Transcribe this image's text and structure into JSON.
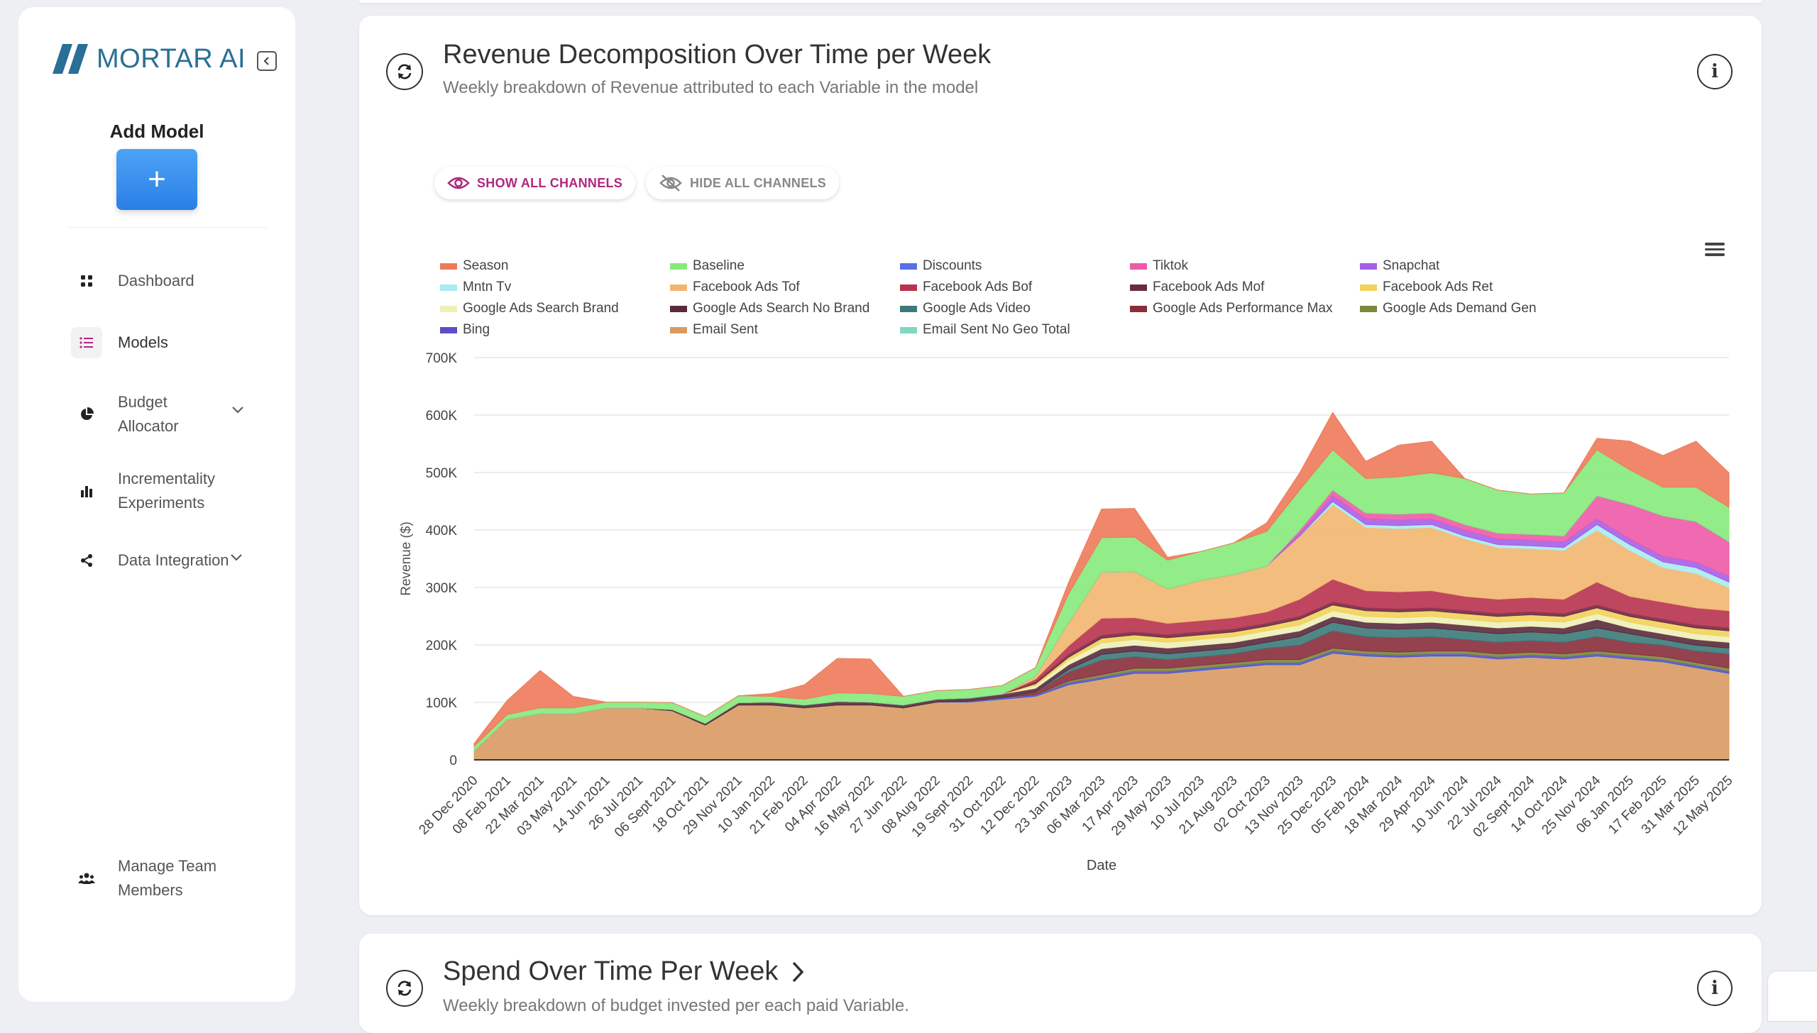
{
  "sidebar": {
    "brand": "MORTAR AI",
    "add_model_title": "Add Model",
    "add_model_symbol": "+",
    "items": [
      {
        "label": "Dashboard",
        "icon": "grid-icon"
      },
      {
        "label": "Models",
        "icon": "list-icon",
        "active": true
      },
      {
        "label": "Budget Allocator",
        "icon": "pie-chart-icon",
        "expandable": true
      },
      {
        "label": "Incrementality Experiments",
        "icon": "bar-chart-icon"
      },
      {
        "label": "Data Integration",
        "icon": "share-icon",
        "expandable": true
      },
      {
        "label": "Manage Team Members",
        "icon": "team-icon"
      }
    ]
  },
  "revenue_card": {
    "title": "Revenue Decomposition Over Time per Week",
    "subtitle": "Weekly breakdown of Revenue attributed to each Variable in the model",
    "show_all_label": "SHOW ALL CHANNELS",
    "hide_all_label": "HIDE ALL CHANNELS"
  },
  "spend_card": {
    "title": "Spend Over Time Per Week",
    "subtitle": "Weekly breakdown of budget invested per each paid Variable."
  },
  "chart_data": {
    "type": "area",
    "stacked": true,
    "xlabel": "Date",
    "ylabel": "Revenue ($)",
    "ylim": [
      0,
      700000
    ],
    "y_ticks": [
      "0",
      "100K",
      "200K",
      "300K",
      "400K",
      "500K",
      "600K",
      "700K"
    ],
    "x_tick_labels": [
      "28 Dec 2020",
      "08 Feb 2021",
      "22 Mar 2021",
      "03 May 2021",
      "14 Jun 2021",
      "26 Jul 2021",
      "06 Sept 2021",
      "18 Oct 2021",
      "29 Nov 2021",
      "10 Jan 2022",
      "21 Feb 2022",
      "04 Apr 2022",
      "16 May 2022",
      "27 Jun 2022",
      "08 Aug 2022",
      "19 Sept 2022",
      "31 Oct 2022",
      "12 Dec 2022",
      "23 Jan 2023",
      "06 Mar 2023",
      "17 Apr 2023",
      "29 May 2023",
      "10 Jul 2023",
      "21 Aug 2023",
      "02 Oct 2023",
      "13 Nov 2023",
      "25 Dec 2023",
      "05 Feb 2024",
      "18 Mar 2024",
      "29 Apr 2024",
      "10 Jun 2024",
      "22 Jul 2024",
      "02 Sept 2024",
      "14 Oct 2024",
      "25 Nov 2024",
      "06 Jan 2025",
      "17 Feb 2025",
      "31 Mar 2025",
      "12 May 2025"
    ],
    "grid": true,
    "legend_position": "top",
    "series_values_note_x": "values given per x tick label (approx. weekly samples at tick dates)",
    "series": [
      {
        "name": "Email Sent",
        "color": "#d99a62",
        "values": [
          15000,
          70000,
          80000,
          80000,
          90000,
          90000,
          85000,
          60000,
          95000,
          95000,
          90000,
          95000,
          95000,
          90000,
          100000,
          100000,
          105000,
          110000,
          130000,
          140000,
          150000,
          150000,
          155000,
          160000,
          165000,
          165000,
          185000,
          180000,
          178000,
          180000,
          180000,
          175000,
          178000,
          175000,
          180000,
          175000,
          170000,
          160000,
          150000
        ]
      },
      {
        "name": "Email Sent No Geo Total",
        "color": "#7fd8c0",
        "values": [
          500,
          500,
          500,
          500,
          500,
          500,
          500,
          500,
          500,
          500,
          500,
          500,
          500,
          500,
          500,
          500,
          500,
          500,
          500,
          500,
          500,
          500,
          500,
          500,
          500,
          500,
          500,
          500,
          500,
          500,
          500,
          500,
          500,
          500,
          500,
          500,
          500,
          500,
          500
        ]
      },
      {
        "name": "Bing",
        "color": "#5a4fc8",
        "values": [
          0,
          0,
          0,
          0,
          0,
          0,
          0,
          0,
          0,
          0,
          0,
          0,
          0,
          0,
          0,
          2000,
          3000,
          3000,
          4000,
          4000,
          4000,
          4000,
          4000,
          4000,
          4000,
          4000,
          4000,
          4000,
          4000,
          4000,
          4000,
          4000,
          4000,
          4000,
          4000,
          4000,
          4000,
          4000,
          4000
        ]
      },
      {
        "name": "Google Ads Demand Gen",
        "color": "#7a8a3a",
        "values": [
          0,
          0,
          0,
          0,
          0,
          0,
          0,
          0,
          0,
          0,
          0,
          0,
          0,
          0,
          0,
          0,
          0,
          0,
          3000,
          4000,
          5000,
          5000,
          5000,
          5000,
          5000,
          5000,
          5000,
          5000,
          5000,
          5000,
          5000,
          5000,
          5000,
          5000,
          5000,
          5000,
          5000,
          5000,
          5000
        ]
      },
      {
        "name": "Google Ads Performance Max",
        "color": "#8a2d3c",
        "values": [
          0,
          0,
          0,
          0,
          0,
          0,
          0,
          0,
          0,
          0,
          0,
          0,
          0,
          0,
          0,
          0,
          0,
          5000,
          15000,
          25000,
          20000,
          15000,
          15000,
          15000,
          20000,
          25000,
          30000,
          25000,
          25000,
          25000,
          20000,
          20000,
          20000,
          20000,
          25000,
          20000,
          20000,
          20000,
          25000
        ]
      },
      {
        "name": "Google Ads Video",
        "color": "#3c7a7a",
        "values": [
          0,
          0,
          0,
          0,
          0,
          0,
          0,
          0,
          0,
          0,
          0,
          0,
          0,
          0,
          0,
          0,
          0,
          0,
          5000,
          10000,
          10000,
          10000,
          10000,
          10000,
          10000,
          15000,
          15000,
          15000,
          15000,
          15000,
          15000,
          15000,
          15000,
          15000,
          15000,
          15000,
          10000,
          10000,
          10000
        ]
      },
      {
        "name": "Google Ads Search No Brand",
        "color": "#5a2a3c",
        "values": [
          0,
          0,
          0,
          0,
          0,
          0,
          2000,
          3000,
          4000,
          5000,
          5000,
          6000,
          5000,
          5000,
          5000,
          5000,
          6000,
          6000,
          8000,
          10000,
          10000,
          10000,
          10000,
          10000,
          10000,
          10000,
          10000,
          10000,
          10000,
          10000,
          10000,
          10000,
          10000,
          10000,
          15000,
          10000,
          10000,
          10000,
          10000
        ]
      },
      {
        "name": "Google Ads Search Brand",
        "color": "#eef0b8",
        "values": [
          0,
          0,
          0,
          0,
          0,
          0,
          0,
          0,
          0,
          0,
          0,
          0,
          0,
          0,
          0,
          0,
          0,
          5000,
          8000,
          10000,
          10000,
          10000,
          10000,
          10000,
          10000,
          10000,
          10000,
          10000,
          10000,
          10000,
          10000,
          10000,
          10000,
          10000,
          10000,
          10000,
          10000,
          10000,
          10000
        ]
      },
      {
        "name": "Facebook Ads Ret",
        "color": "#f2d25a",
        "values": [
          0,
          0,
          0,
          0,
          0,
          0,
          0,
          0,
          0,
          0,
          0,
          0,
          0,
          0,
          0,
          0,
          0,
          3000,
          5000,
          8000,
          8000,
          8000,
          8000,
          8000,
          8000,
          10000,
          10000,
          10000,
          10000,
          10000,
          10000,
          10000,
          10000,
          10000,
          10000,
          10000,
          10000,
          10000,
          10000
        ]
      },
      {
        "name": "Facebook Ads Mof",
        "color": "#6a2a44",
        "values": [
          0,
          0,
          0,
          0,
          0,
          0,
          0,
          0,
          0,
          0,
          0,
          0,
          0,
          0,
          0,
          0,
          0,
          3000,
          5000,
          5000,
          5000,
          5000,
          5000,
          5000,
          5000,
          5000,
          5000,
          5000,
          5000,
          5000,
          5000,
          5000,
          5000,
          5000,
          5000,
          5000,
          5000,
          5000,
          5000
        ]
      },
      {
        "name": "Facebook Ads Bof",
        "color": "#b8324e",
        "values": [
          0,
          0,
          0,
          0,
          0,
          0,
          0,
          0,
          0,
          0,
          0,
          0,
          0,
          0,
          0,
          0,
          0,
          5000,
          15000,
          30000,
          25000,
          20000,
          20000,
          20000,
          20000,
          30000,
          40000,
          30000,
          30000,
          30000,
          25000,
          25000,
          25000,
          25000,
          40000,
          30000,
          30000,
          30000,
          30000
        ]
      },
      {
        "name": "Facebook Ads Tof",
        "color": "#f2b670",
        "values": [
          0,
          0,
          0,
          0,
          0,
          0,
          0,
          0,
          0,
          0,
          0,
          0,
          0,
          0,
          0,
          0,
          0,
          5000,
          40000,
          80000,
          80000,
          60000,
          70000,
          75000,
          80000,
          110000,
          130000,
          110000,
          110000,
          110000,
          100000,
          90000,
          85000,
          85000,
          90000,
          80000,
          60000,
          60000,
          40000
        ]
      },
      {
        "name": "Mntn Tv",
        "color": "#a8ecf0",
        "values": [
          0,
          0,
          0,
          0,
          0,
          0,
          0,
          0,
          0,
          0,
          0,
          0,
          0,
          0,
          0,
          0,
          0,
          0,
          0,
          0,
          0,
          0,
          0,
          0,
          0,
          0,
          5000,
          5000,
          5000,
          5000,
          5000,
          5000,
          5000,
          5000,
          10000,
          10000,
          10000,
          10000,
          10000
        ]
      },
      {
        "name": "Snapchat",
        "color": "#a65ee8",
        "values": [
          0,
          0,
          0,
          0,
          0,
          0,
          0,
          0,
          0,
          0,
          0,
          0,
          0,
          0,
          0,
          0,
          0,
          0,
          0,
          0,
          0,
          0,
          0,
          0,
          0,
          5000,
          10000,
          10000,
          10000,
          10000,
          10000,
          10000,
          10000,
          10000,
          10000,
          10000,
          10000,
          10000,
          10000
        ]
      },
      {
        "name": "Tiktok",
        "color": "#ee5aa8",
        "values": [
          0,
          0,
          0,
          0,
          0,
          0,
          0,
          0,
          0,
          0,
          0,
          0,
          0,
          0,
          0,
          0,
          0,
          0,
          0,
          0,
          0,
          0,
          0,
          0,
          0,
          5000,
          10000,
          10000,
          10000,
          10000,
          10000,
          10000,
          10000,
          10000,
          40000,
          60000,
          70000,
          70000,
          60000
        ]
      },
      {
        "name": "Discounts",
        "color": "#5a6ee8",
        "values": [
          0,
          0,
          0,
          0,
          0,
          0,
          0,
          0,
          0,
          0,
          0,
          0,
          0,
          0,
          0,
          0,
          0,
          0,
          0,
          0,
          0,
          0,
          0,
          0,
          0,
          0,
          0,
          0,
          0,
          0,
          0,
          0,
          0,
          0,
          0,
          0,
          0,
          0,
          0
        ]
      },
      {
        "name": "Baseline",
        "color": "#86ea7a",
        "values": [
          8000,
          8000,
          10000,
          10000,
          10000,
          10000,
          12000,
          12000,
          12000,
          10000,
          10000,
          15000,
          15000,
          15000,
          15000,
          15000,
          15000,
          15000,
          50000,
          60000,
          60000,
          50000,
          50000,
          55000,
          60000,
          70000,
          70000,
          60000,
          65000,
          70000,
          80000,
          75000,
          70000,
          75000,
          80000,
          60000,
          50000,
          60000,
          60000
        ]
      },
      {
        "name": "Season",
        "color": "#ee7a5a",
        "values": [
          5000,
          25000,
          65000,
          20000,
          0,
          0,
          0,
          0,
          0,
          5000,
          25000,
          60000,
          60000,
          0,
          0,
          0,
          0,
          0,
          20000,
          50000,
          50000,
          5000,
          0,
          0,
          15000,
          30000,
          65000,
          30000,
          55000,
          55000,
          0,
          0,
          0,
          0,
          20000,
          50000,
          55000,
          80000,
          60000
        ]
      }
    ]
  }
}
